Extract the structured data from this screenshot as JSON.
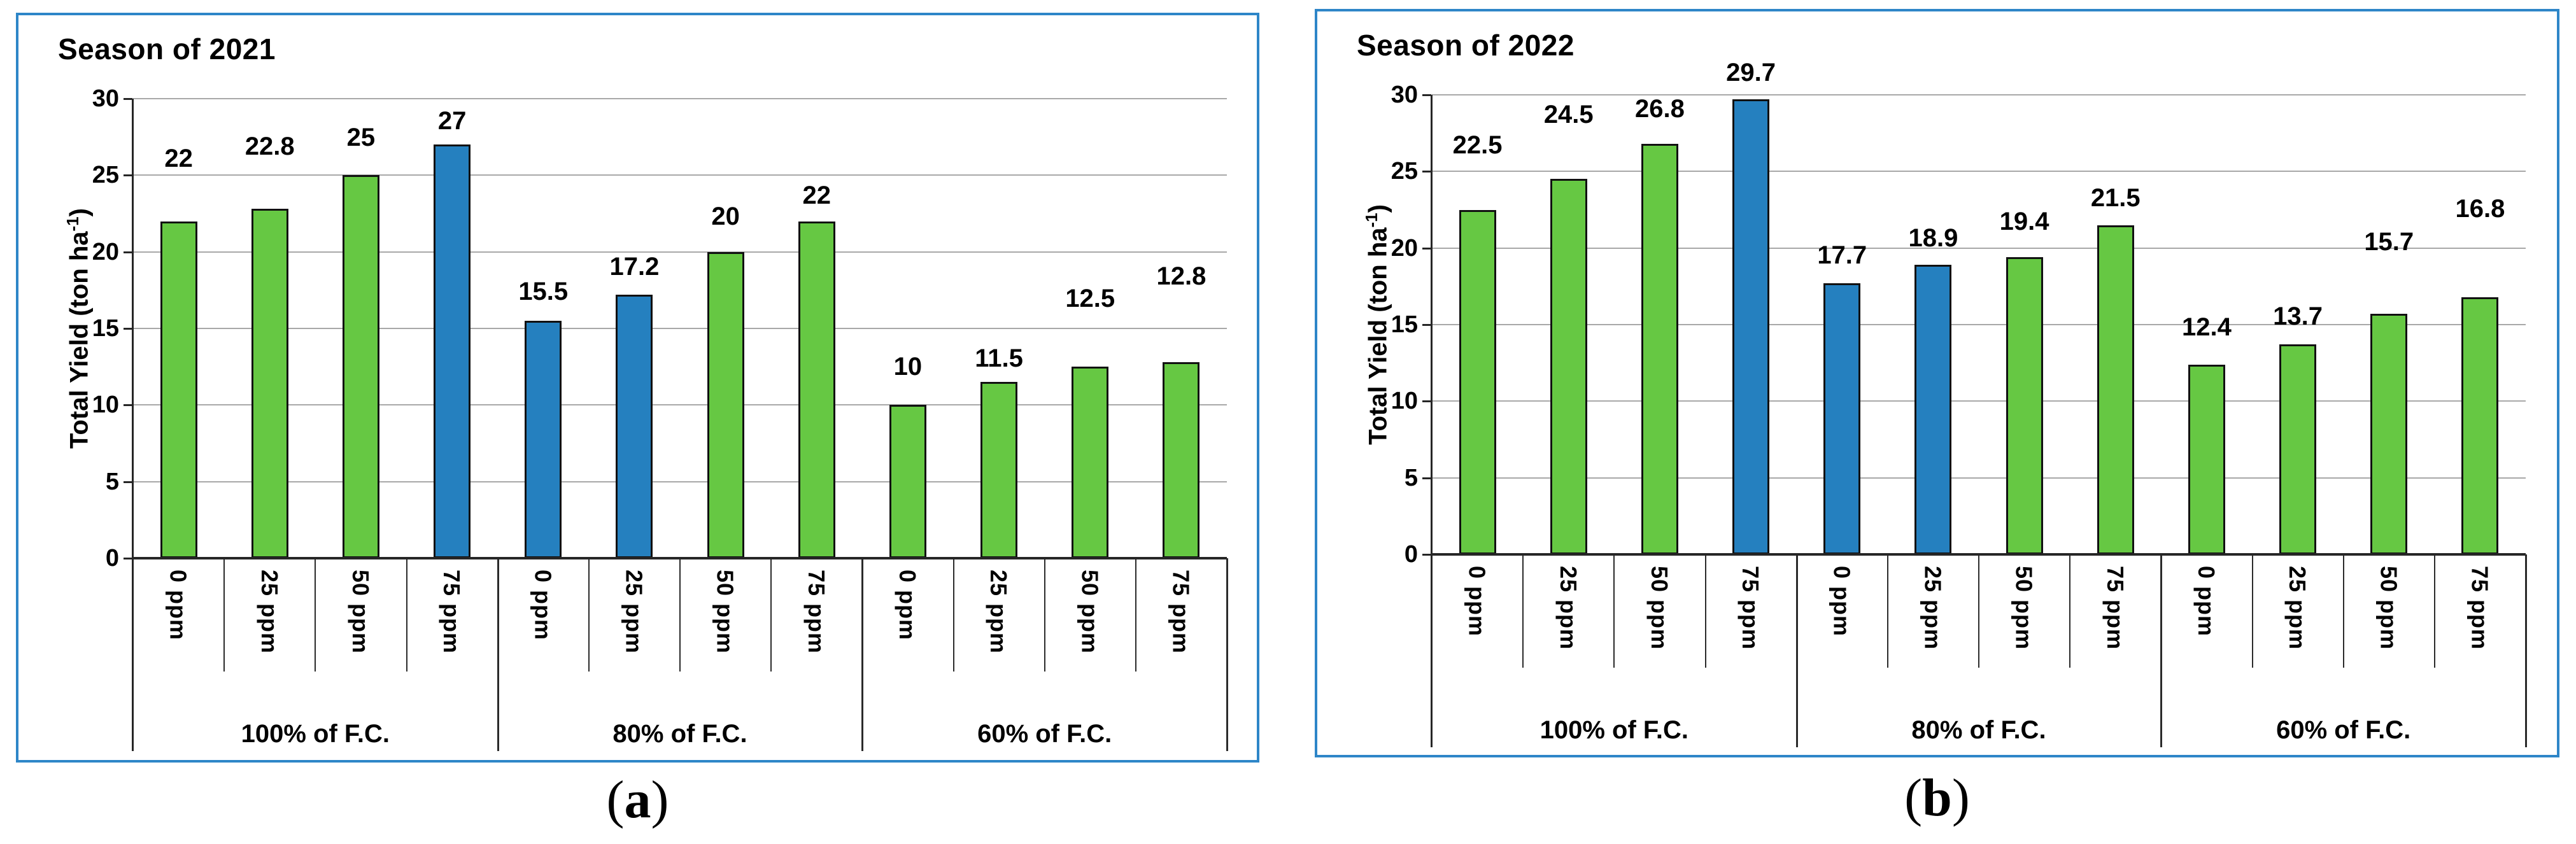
{
  "page": {
    "background": "#ffffff"
  },
  "colors": {
    "bar_green": "#66c843",
    "bar_blue": "#2580bf",
    "bar_outline": "#111111",
    "panel_border": "#2e86c8",
    "gridline": "#a8a8a8",
    "axis": "#262626",
    "text": "#000000"
  },
  "captions": [
    {
      "open": "(",
      "letter": "a",
      "close": ")"
    },
    {
      "open": "(",
      "letter": "b",
      "close": ")"
    }
  ],
  "chart_data": [
    {
      "type": "bar",
      "title": "Season of 2021",
      "xlabel": "",
      "ylabel": "Total Yield (ton ha⁻¹)",
      "ylabel_parts": {
        "main": "Total Yield (ton ha",
        "sup": "-1",
        "close": ")"
      },
      "ylim": [
        0,
        30
      ],
      "yticks": [
        0,
        5,
        10,
        15,
        20,
        25,
        30
      ],
      "grid": true,
      "legend": "none",
      "group_labels": [
        "100% of F.C.",
        "80% of F.C.",
        "60% of F.C."
      ],
      "categories": [
        "0 ppm",
        "25 ppm",
        "50 ppm",
        "75 ppm",
        "0 ppm",
        "25 ppm",
        "50 ppm",
        "75 ppm",
        "0 ppm",
        "25 ppm",
        "50 ppm",
        "75 ppm"
      ],
      "values": [
        22,
        22.8,
        25,
        27,
        15.5,
        17.2,
        20,
        22,
        10,
        11.5,
        12.5,
        12.8
      ],
      "value_labels": [
        "22",
        "22.8",
        "25",
        "27",
        "15.5",
        "17.2",
        "20",
        "22",
        "10",
        "11.5",
        "12.5",
        "12.8"
      ],
      "bar_colors": [
        "green",
        "green",
        "green",
        "blue",
        "blue",
        "blue",
        "green",
        "green",
        "green",
        "green",
        "green",
        "green"
      ],
      "label_gaps": [
        75,
        74,
        35,
        13,
        22,
        20,
        32,
        17,
        36,
        13,
        83,
        111
      ]
    },
    {
      "type": "bar",
      "title": "Season of 2022",
      "xlabel": "",
      "ylabel": "Total Yield (ton ha⁻¹)",
      "ylabel_parts": {
        "main": "Total Yield (ton ha",
        "sup": "-1",
        "close": ")"
      },
      "ylim": [
        0,
        30
      ],
      "yticks": [
        0,
        5,
        10,
        15,
        20,
        25,
        30
      ],
      "grid": true,
      "legend": "none",
      "group_labels": [
        "100% of F.C.",
        "80% of F.C.",
        "60% of F.C."
      ],
      "categories": [
        "0 ppm",
        "25 ppm",
        "50 ppm",
        "75 ppm",
        "0 ppm",
        "25 ppm",
        "50 ppm",
        "75 ppm",
        "0 ppm",
        "25 ppm",
        "50 ppm",
        "75 ppm"
      ],
      "values": [
        22.5,
        24.5,
        26.8,
        29.7,
        17.7,
        18.9,
        19.4,
        21.5,
        12.4,
        13.7,
        15.7,
        16.8
      ],
      "value_labels": [
        "22.5",
        "24.5",
        "26.8",
        "29.7",
        "17.7",
        "18.9",
        "19.4",
        "21.5",
        "12.4",
        "13.7",
        "15.7",
        "16.8"
      ],
      "bar_colors": [
        "green",
        "green",
        "green",
        "blue",
        "blue",
        "blue",
        "green",
        "green",
        "green",
        "green",
        "green",
        "green"
      ],
      "label_gaps": [
        78,
        77,
        31,
        18,
        20,
        18,
        32,
        19,
        35,
        20,
        89,
        115
      ]
    }
  ]
}
